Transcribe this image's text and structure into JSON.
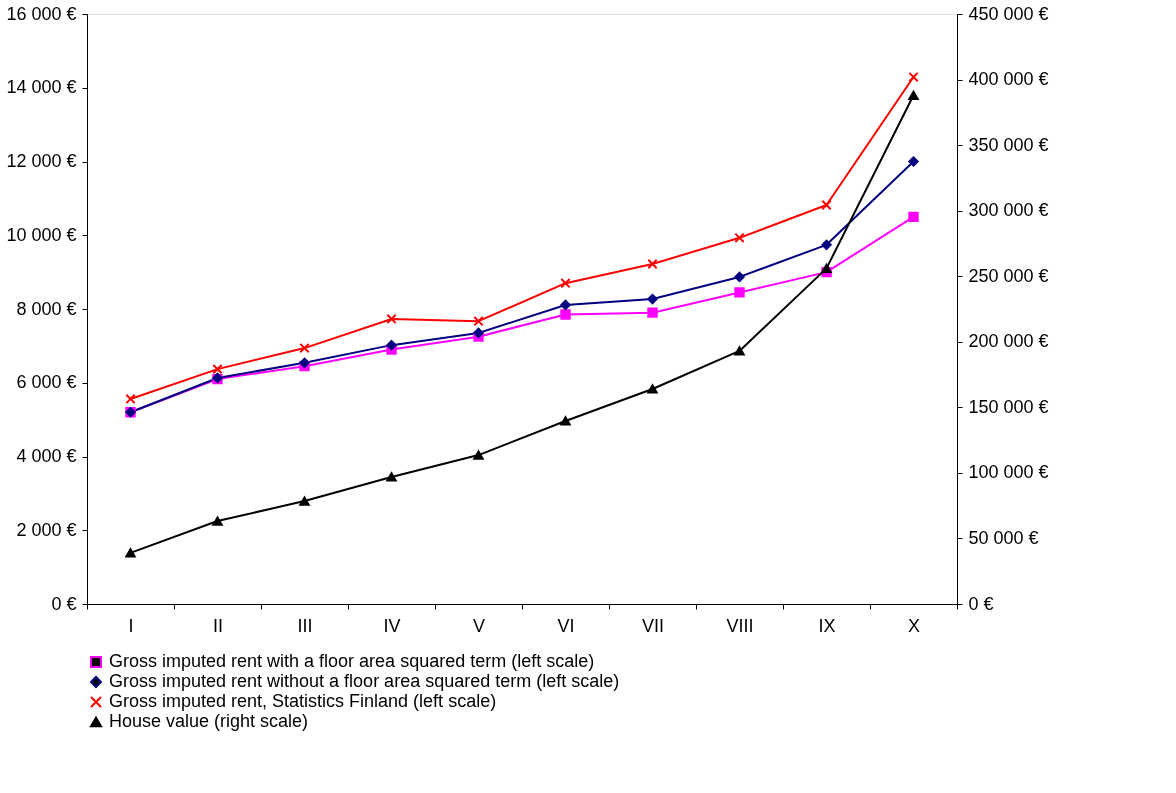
{
  "chart_data": {
    "type": "line",
    "categories": [
      "I",
      "II",
      "III",
      "IV",
      "V",
      "VI",
      "VII",
      "VIII",
      "IX",
      "X"
    ],
    "series": [
      {
        "name": "Gross imputed rent with a floor area squared term (left scale)",
        "color": "#ff00ff",
        "marker": "square",
        "values": [
          5200,
          6100,
          6450,
          6900,
          7250,
          7850,
          7900,
          8450,
          9000,
          10500
        ]
      },
      {
        "name": "Gross imputed rent without a floor area squared term (left scale)",
        "color": "#000080",
        "marker": "diamond",
        "values": [
          5200,
          6130,
          6540,
          7020,
          7350,
          8110,
          8270,
          8870,
          9740,
          12000
        ]
      },
      {
        "name": "Gross imputed rent, Statistics Finland (left scale)",
        "color": "#ff0000",
        "marker": "cross",
        "values": [
          5560,
          6370,
          6940,
          7730,
          7670,
          8700,
          9220,
          9930,
          10820,
          14290
        ]
      },
      {
        "name": "House value (right scale)",
        "color": "#000000",
        "marker": "triangle",
        "axis": "y2",
        "values": [
          39000,
          63300,
          78500,
          96900,
          113600,
          139600,
          164000,
          193000,
          256000,
          388000
        ]
      }
    ],
    "ylim": [
      0,
      16000
    ],
    "yticks": [
      {
        "value": 0,
        "label": "0 €"
      },
      {
        "value": 2000,
        "label": "2 000 €"
      },
      {
        "value": 4000,
        "label": "4 000 €"
      },
      {
        "value": 6000,
        "label": "6 000 €"
      },
      {
        "value": 8000,
        "label": "8 000 €"
      },
      {
        "value": 10000,
        "label": "10 000 €"
      },
      {
        "value": 12000,
        "label": "12 000 €"
      },
      {
        "value": 14000,
        "label": "14 000 €"
      },
      {
        "value": 16000,
        "label": "16 000 €"
      }
    ],
    "y2lim": [
      0,
      450000
    ],
    "y2ticks": [
      {
        "value": 0,
        "label": "0 €"
      },
      {
        "value": 50000,
        "label": "50 000 €"
      },
      {
        "value": 100000,
        "label": "100 000 €"
      },
      {
        "value": 150000,
        "label": "150 000 €"
      },
      {
        "value": 200000,
        "label": "200 000 €"
      },
      {
        "value": 250000,
        "label": "250 000 €"
      },
      {
        "value": 300000,
        "label": "300 000 €"
      },
      {
        "value": 350000,
        "label": "350 000 €"
      },
      {
        "value": 400000,
        "label": "400 000 €"
      },
      {
        "value": 450000,
        "label": "450 000 €"
      }
    ],
    "grid": false,
    "legend": "bottom",
    "line_style": "solid"
  }
}
